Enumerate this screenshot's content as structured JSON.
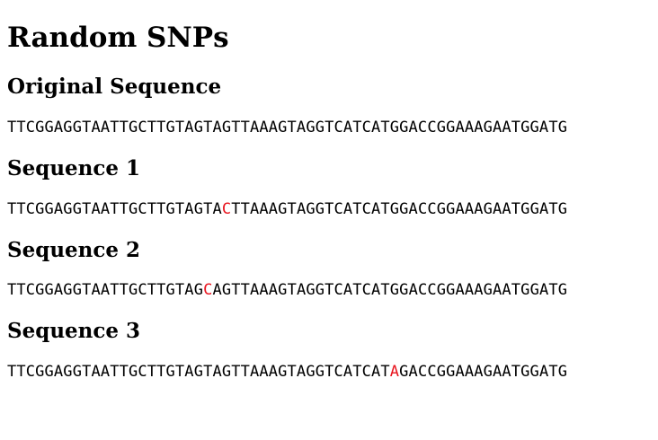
{
  "page": {
    "title": "Random SNPs"
  },
  "original": {
    "heading": "Original Sequence",
    "sequence": "TTCGGAGGTAATTGCTTGTAGTAGTTAAAGTAGGTCATCATGGACCGGAAAGAATGGATG"
  },
  "sequences": [
    {
      "heading": "Sequence 1",
      "before": "TTCGGAGGTAATTGCTTGTAGTA",
      "snp": "C",
      "after": "TTAAAGTAGGTCATCATGGACCGGAAAGAATGGATG"
    },
    {
      "heading": "Sequence 2",
      "before": "TTCGGAGGTAATTGCTTGTAG",
      "snp": "C",
      "after": "AGTTAAAGTAGGTCATCATGGACCGGAAAGAATGGATG"
    },
    {
      "heading": "Sequence 3",
      "before": "TTCGGAGGTAATTGCTTGTAGTAGTTAAAGTAGGTCATCAT",
      "snp": "A",
      "after": "GACCGGAAAGAATGGATG"
    }
  ],
  "colors": {
    "snp_highlight": "#e8141e"
  }
}
